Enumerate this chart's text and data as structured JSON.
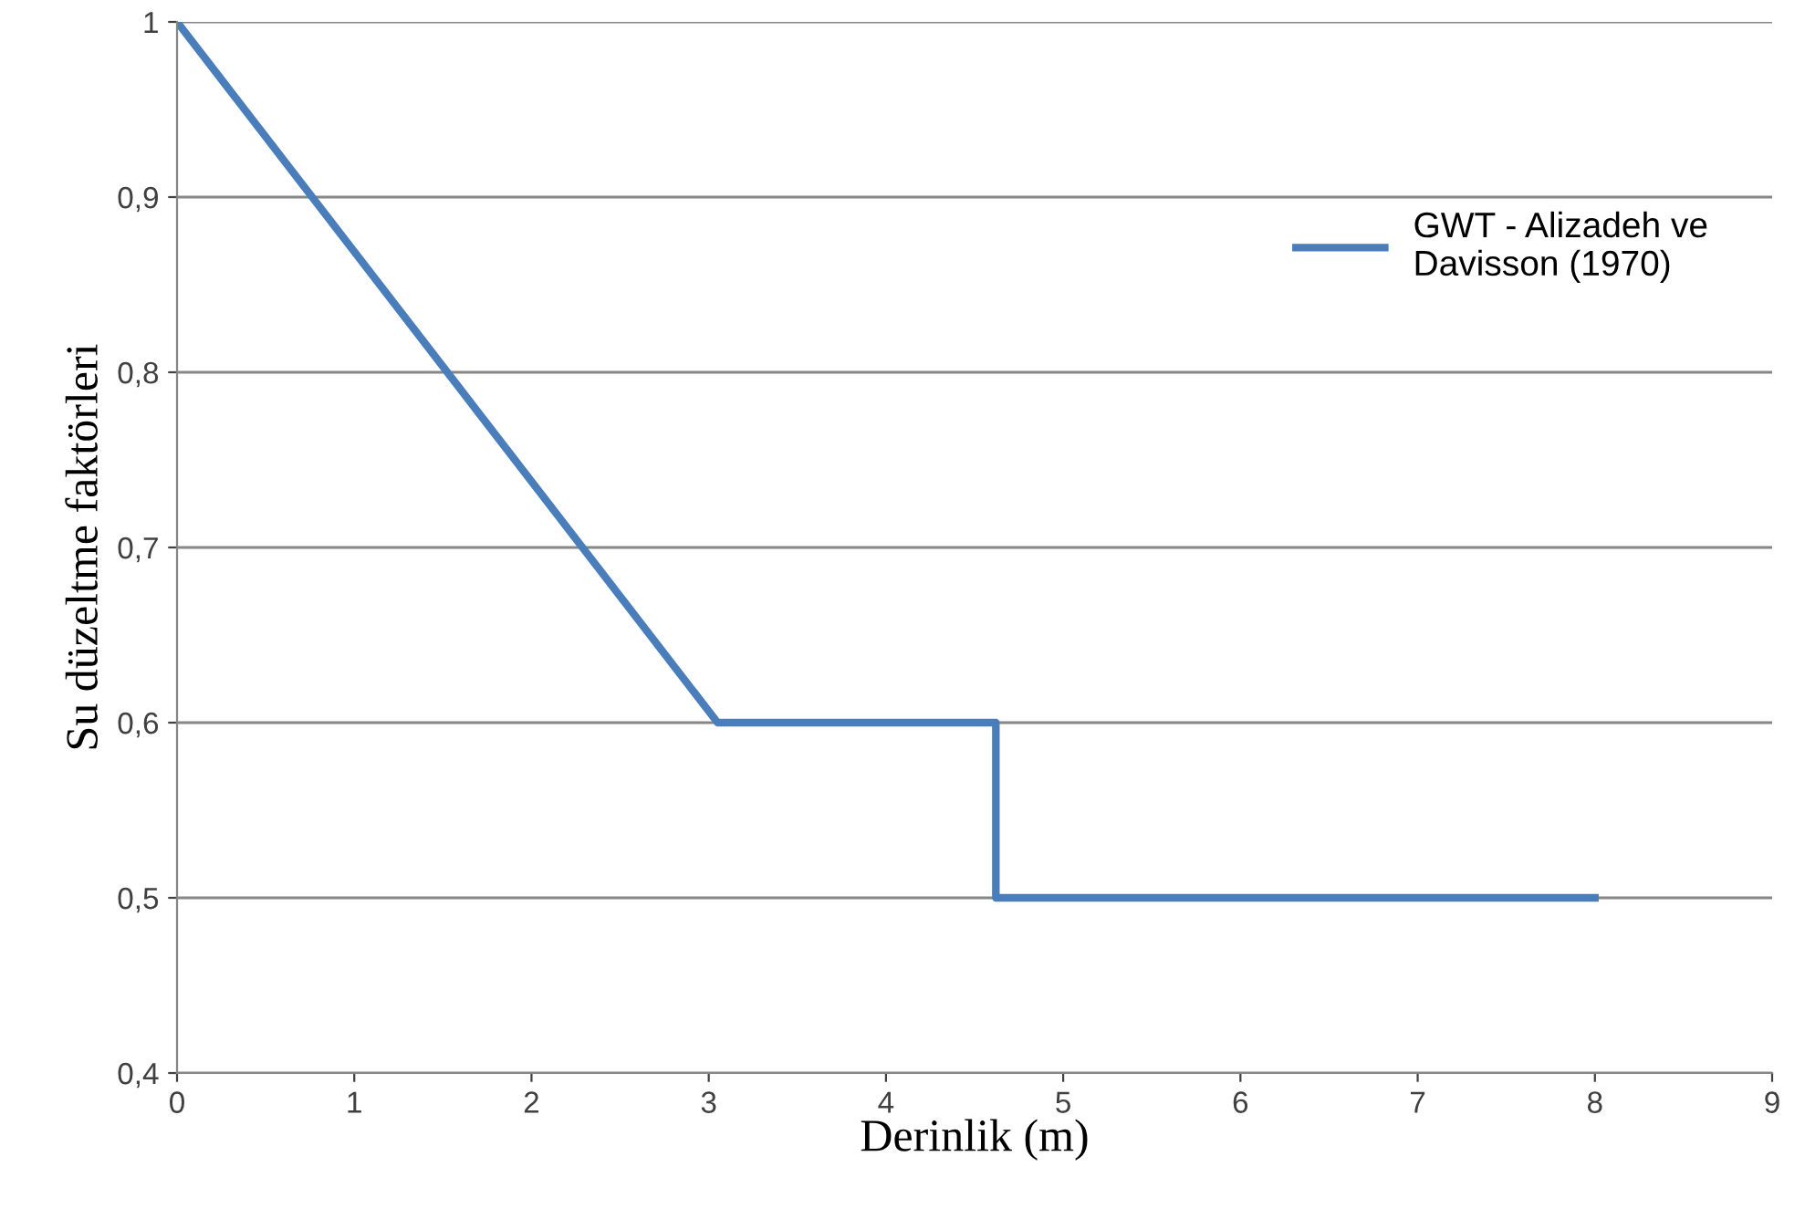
{
  "chart_data": {
    "type": "line",
    "xlabel": "Derinlik (m)",
    "ylabel": "Su düzeltme faktörleri",
    "x": [
      0,
      3.05,
      4.62,
      4.62,
      8
    ],
    "series": [
      {
        "name": "GWT - Alizadeh ve\nDavisson (1970)",
        "color": "#4a7ebb",
        "values": [
          1,
          0.6,
          0.6,
          0.5,
          0.5
        ]
      }
    ],
    "xlim": [
      0,
      9
    ],
    "xticks": [
      0,
      1,
      2,
      3,
      4,
      5,
      6,
      7,
      8,
      9
    ],
    "ylim": [
      0.4,
      1
    ],
    "yticks": [
      {
        "value": 0.4,
        "label": "0,4"
      },
      {
        "value": 0.5,
        "label": "0,5"
      },
      {
        "value": 0.6,
        "label": "0,6"
      },
      {
        "value": 0.7,
        "label": "0,7"
      },
      {
        "value": 0.8,
        "label": "0,8"
      },
      {
        "value": 0.9,
        "label": "0,9"
      },
      1
    ],
    "grid": "y",
    "legend": "top right",
    "marker": "none",
    "line_style": "solid"
  }
}
